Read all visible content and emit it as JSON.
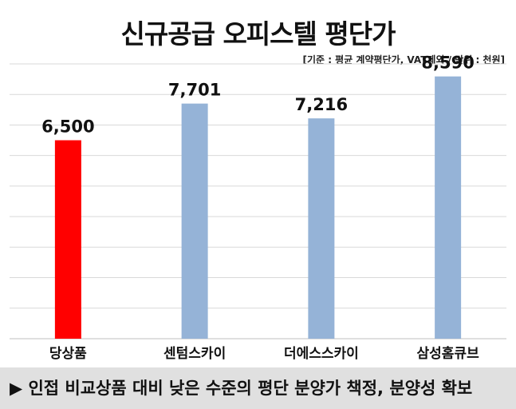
{
  "chart_data": {
    "type": "bar",
    "title": "신규공급 오피스텔 평단가",
    "note": "[기준 : 평균 계약평단가, VAT제외 / 단위 : 천원]",
    "categories": [
      "당상품",
      "센텀스카이",
      "더에스스카이",
      "삼성홈큐브"
    ],
    "values": [
      6500,
      7701,
      7216,
      8590
    ],
    "value_labels": [
      "6,500",
      "7,701",
      "7,216",
      "8,590"
    ],
    "colors": [
      "#ff0000",
      "#95b3d7",
      "#95b3d7",
      "#95b3d7"
    ],
    "ylim": [
      0,
      9000
    ],
    "grid": true
  },
  "footer": {
    "marker": "▶",
    "text": "인접 비교상품 대비 낮은 수준의 평단 분양가 책정, 분양성 확보",
    "background": "#e0e0e0"
  }
}
